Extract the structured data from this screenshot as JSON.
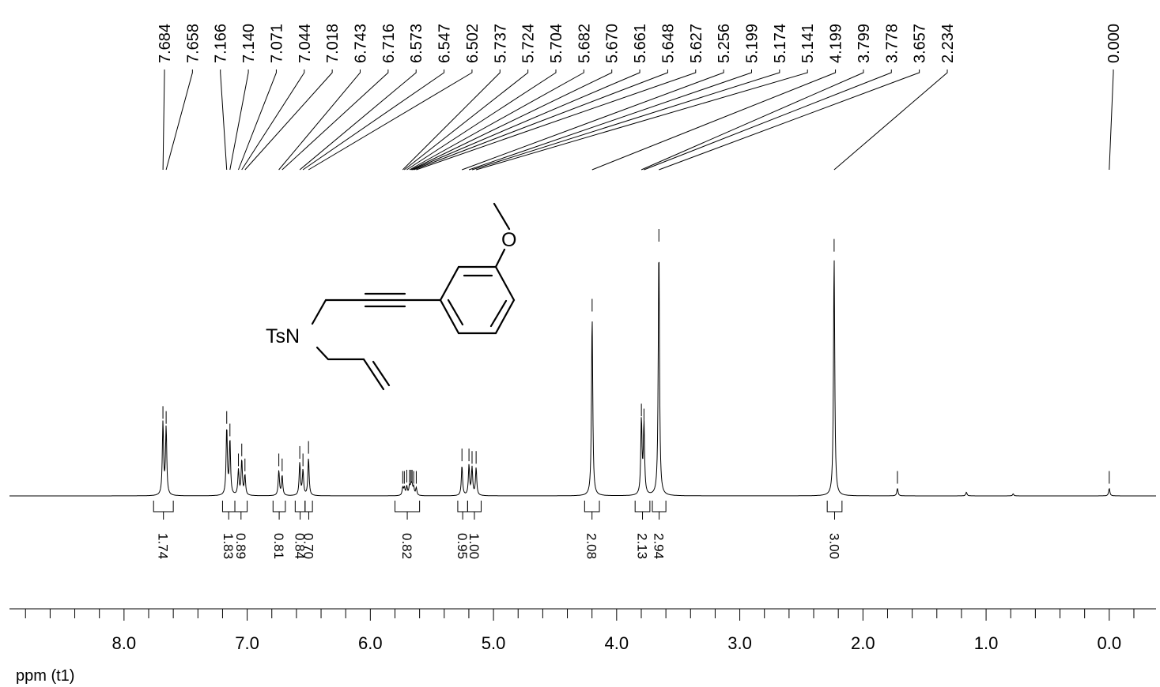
{
  "chart_data": {
    "type": "line",
    "xlabel": "ppm (t1)",
    "ylabel": "",
    "xlim": [
      8.93,
      -0.38
    ],
    "x_reversed": true,
    "grid": false,
    "ticks": [
      "8.0",
      "7.0",
      "6.0",
      "5.0",
      "4.0",
      "3.0",
      "2.0",
      "1.0",
      "0.0"
    ],
    "peak_labels": [
      "7.684",
      "7.658",
      "7.166",
      "7.140",
      "7.071",
      "7.044",
      "7.018",
      "6.743",
      "6.716",
      "6.573",
      "6.547",
      "6.502",
      "5.737",
      "5.724",
      "5.704",
      "5.682",
      "5.670",
      "5.661",
      "5.648",
      "5.627",
      "5.256",
      "5.199",
      "5.174",
      "5.141",
      "4.199",
      "3.799",
      "3.778",
      "3.657",
      "2.234",
      "0.000"
    ],
    "integrals": [
      {
        "from": 7.76,
        "to": 7.6,
        "value": "1.74"
      },
      {
        "from": 7.2,
        "to": 7.1,
        "value": "1.83"
      },
      {
        "from": 7.1,
        "to": 7.0,
        "value": "0.89"
      },
      {
        "from": 6.79,
        "to": 6.69,
        "value": "0.81"
      },
      {
        "from": 6.61,
        "to": 6.53,
        "value": "0.84"
      },
      {
        "from": 6.53,
        "to": 6.47,
        "value": "0.70"
      },
      {
        "from": 5.8,
        "to": 5.6,
        "value": "0.82"
      },
      {
        "from": 5.29,
        "to": 5.21,
        "value": "0.95"
      },
      {
        "from": 5.21,
        "to": 5.1,
        "value": "1.00"
      },
      {
        "from": 4.26,
        "to": 4.14,
        "value": "2.08"
      },
      {
        "from": 3.85,
        "to": 3.73,
        "value": "2.13"
      },
      {
        "from": 3.71,
        "to": 3.6,
        "value": "2.94"
      },
      {
        "from": 2.29,
        "to": 2.17,
        "value": "3.00"
      }
    ],
    "peaks": [
      {
        "ppm": 7.684,
        "height": 0.29
      },
      {
        "ppm": 7.658,
        "height": 0.27
      },
      {
        "ppm": 7.166,
        "height": 0.27
      },
      {
        "ppm": 7.14,
        "height": 0.22
      },
      {
        "ppm": 7.071,
        "height": 0.1
      },
      {
        "ppm": 7.044,
        "height": 0.14
      },
      {
        "ppm": 7.018,
        "height": 0.08
      },
      {
        "ppm": 6.743,
        "height": 0.1
      },
      {
        "ppm": 6.716,
        "height": 0.08
      },
      {
        "ppm": 6.573,
        "height": 0.13
      },
      {
        "ppm": 6.547,
        "height": 0.1
      },
      {
        "ppm": 6.502,
        "height": 0.15
      },
      {
        "ppm": 5.737,
        "height": 0.03
      },
      {
        "ppm": 5.724,
        "height": 0.03
      },
      {
        "ppm": 5.704,
        "height": 0.035
      },
      {
        "ppm": 5.682,
        "height": 0.035
      },
      {
        "ppm": 5.67,
        "height": 0.035
      },
      {
        "ppm": 5.661,
        "height": 0.035
      },
      {
        "ppm": 5.648,
        "height": 0.03
      },
      {
        "ppm": 5.627,
        "height": 0.03
      },
      {
        "ppm": 5.256,
        "height": 0.12
      },
      {
        "ppm": 5.199,
        "height": 0.12
      },
      {
        "ppm": 5.174,
        "height": 0.11
      },
      {
        "ppm": 5.141,
        "height": 0.11
      },
      {
        "ppm": 4.199,
        "height": 0.72
      },
      {
        "ppm": 3.799,
        "height": 0.3
      },
      {
        "ppm": 3.778,
        "height": 0.28
      },
      {
        "ppm": 3.657,
        "height": 1.0
      },
      {
        "ppm": 2.234,
        "height": 0.96
      },
      {
        "ppm": 1.72,
        "height": 0.03
      },
      {
        "ppm": 1.16,
        "height": 0.015
      },
      {
        "ppm": 0.78,
        "height": 0.008
      },
      {
        "ppm": 0.0,
        "height": 0.03
      }
    ]
  },
  "structure": {
    "ts_label": "TsN",
    "oxygen_label": "O"
  }
}
